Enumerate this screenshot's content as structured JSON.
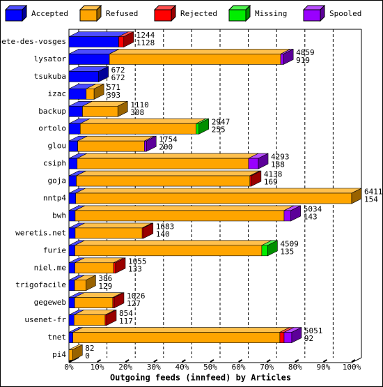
{
  "chart_data": {
    "type": "bar3d-stacked-horizontal",
    "x_label": "Outgoing feeds (innfeed) by Articles",
    "categories": [
      "bete-des-vosges",
      "lysator",
      "tsukuba",
      "izac",
      "backup",
      "ortolo",
      "glou",
      "csiph",
      "goja",
      "nntp4",
      "bwh",
      "weretis.net",
      "furie",
      "niel.me",
      "trigofacile",
      "gegeweb",
      "usenet-fr",
      "tnet",
      "pi4"
    ],
    "series": [
      {
        "name": "Accepted",
        "color": "#0000ff",
        "values": [
          17.6,
          14.3,
          10.5,
          6.1,
          4.8,
          4.0,
          3.1,
          2.9,
          2.6,
          2.4,
          2.2,
          2.2,
          2.1,
          2.1,
          2.0,
          2.0,
          1.8,
          1.4,
          0
        ]
      },
      {
        "name": "Refused",
        "color": "#ffa500",
        "values": [
          0,
          60.6,
          0,
          2.8,
          12.5,
          41.0,
          23.6,
          60.6,
          61.4,
          97.6,
          73.9,
          23.7,
          66.1,
          13.7,
          4.0,
          13.5,
          11.0,
          73.2,
          1.3
        ]
      },
      {
        "name": "Rejected",
        "color": "#ff0000",
        "values": [
          1.8,
          0,
          0,
          0,
          0,
          0,
          0,
          0,
          0.5,
          0,
          0,
          0.4,
          0,
          0.7,
          0,
          0.5,
          0.5,
          1.5,
          0
        ]
      },
      {
        "name": "Missing",
        "color": "#00ee00",
        "values": [
          0,
          0,
          0,
          0,
          0,
          1.0,
          0,
          0,
          0,
          0,
          0,
          0,
          2.1,
          0,
          0,
          0,
          0,
          0,
          0
        ]
      },
      {
        "name": "Spooled",
        "color": "#9900ff",
        "values": [
          0,
          1.0,
          0,
          0,
          0,
          0,
          0.7,
          3.5,
          0,
          0,
          2.4,
          0,
          0,
          0,
          0,
          0,
          0,
          2.7,
          0
        ]
      }
    ],
    "offered": [
      1244,
      4859,
      672,
      571,
      1110,
      2947,
      1754,
      4293,
      4138,
      6411,
      5034,
      1683,
      4509,
      1055,
      386,
      1026,
      854,
      5051,
      82
    ],
    "accepted": [
      1128,
      919,
      672,
      393,
      308,
      255,
      200,
      188,
      169,
      154,
      143,
      140,
      135,
      133,
      129,
      127,
      117,
      92,
      0
    ],
    "xlim": [
      0,
      100
    ],
    "xticks": [
      {
        "value": 0,
        "label": "0%"
      },
      {
        "value": 10,
        "label": "10%"
      },
      {
        "value": 20,
        "label": "20%"
      },
      {
        "value": 30,
        "label": "30%"
      },
      {
        "value": 40,
        "label": "40%"
      },
      {
        "value": 50,
        "label": "50%"
      },
      {
        "value": 60,
        "label": "60%"
      },
      {
        "value": 70,
        "label": "70%"
      },
      {
        "value": 80,
        "label": "80%"
      },
      {
        "value": 90,
        "label": "90%"
      },
      {
        "value": 100,
        "label": "100%"
      }
    ],
    "grid": true
  }
}
